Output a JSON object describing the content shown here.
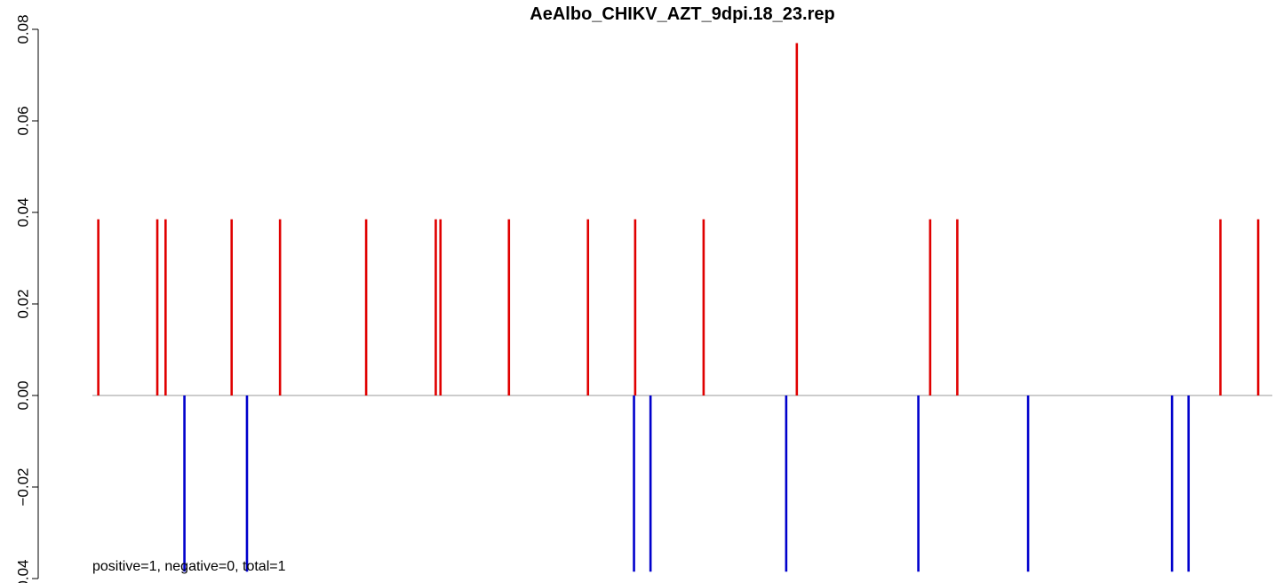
{
  "chart_data": {
    "type": "bar",
    "title": "AeAlbo_CHIKV_AZT_9dpi.18_23.rep",
    "xlabel": "",
    "ylabel": "",
    "ylim": [
      -0.04,
      0.08
    ],
    "yticks": [
      -0.04,
      -0.02,
      0.0,
      0.02,
      0.04,
      0.06,
      0.08
    ],
    "ytick_labels": [
      "−0.04",
      "−0.02",
      "0.00",
      "0.02",
      "0.04",
      "0.06",
      "0.08"
    ],
    "xlim": [
      0,
      100
    ],
    "grid": false,
    "baseline": 0,
    "annotation": "positive=1, negative=0, total=1",
    "series": [
      {
        "color": "#e00000",
        "x": [
          0.5,
          5.5,
          6.2,
          11.8,
          15.9,
          23.2,
          29.1,
          29.5,
          35.3,
          42.0,
          46.0,
          51.8,
          59.7,
          71.0,
          73.3,
          95.6,
          98.8
        ],
        "values": [
          0.0385,
          0.0385,
          0.0385,
          0.0385,
          0.0385,
          0.0385,
          0.0385,
          0.0385,
          0.0385,
          0.0385,
          0.0385,
          0.0385,
          0.077,
          0.0385,
          0.0385,
          0.0385,
          0.0385
        ]
      },
      {
        "color": "#0000cc",
        "x": [
          7.8,
          13.1,
          45.9,
          47.3,
          58.8,
          70.0,
          79.3,
          91.5,
          92.9
        ],
        "values": [
          -0.0385,
          -0.0385,
          -0.0385,
          -0.0385,
          -0.0385,
          -0.0385,
          -0.0385,
          -0.0385,
          -0.0385
        ]
      }
    ]
  }
}
